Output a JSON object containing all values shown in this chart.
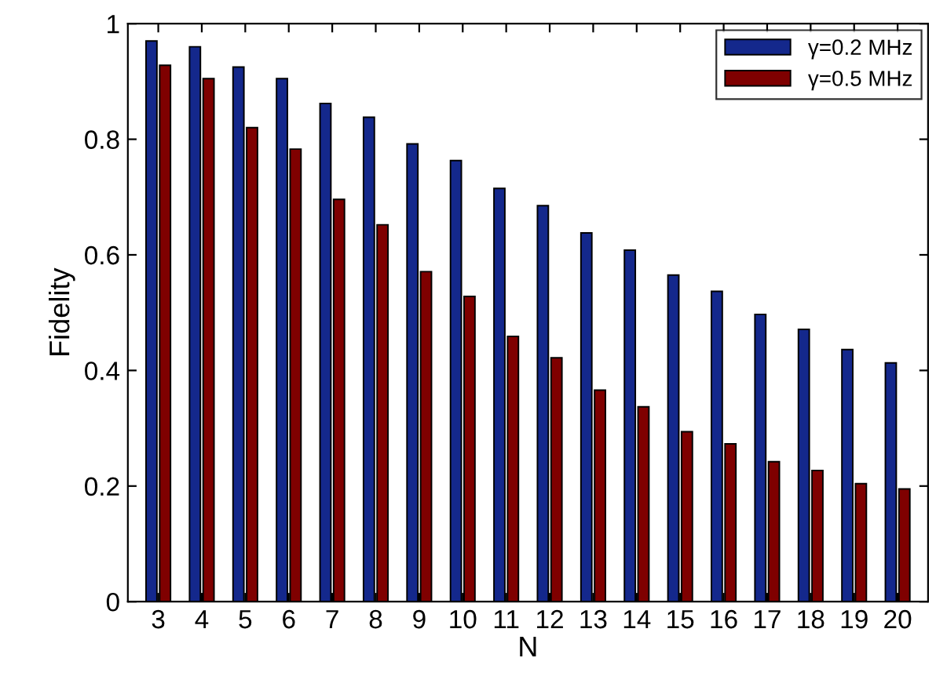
{
  "chart_data": {
    "type": "bar",
    "xlabel": "N",
    "ylabel": "Fidelity",
    "categories": [
      "3",
      "4",
      "5",
      "6",
      "7",
      "8",
      "9",
      "10",
      "11",
      "12",
      "13",
      "14",
      "15",
      "16",
      "17",
      "18",
      "19",
      "20"
    ],
    "series": [
      {
        "name": "γ=0.2 MHz",
        "color": "#14288c",
        "values": [
          0.97,
          0.96,
          0.925,
          0.905,
          0.862,
          0.838,
          0.792,
          0.763,
          0.715,
          0.685,
          0.638,
          0.608,
          0.565,
          0.537,
          0.497,
          0.471,
          0.436,
          0.413
        ]
      },
      {
        "name": "γ=0.5 MHz",
        "color": "#7f0000",
        "values": [
          0.928,
          0.905,
          0.82,
          0.783,
          0.696,
          0.652,
          0.571,
          0.528,
          0.459,
          0.422,
          0.366,
          0.337,
          0.294,
          0.273,
          0.242,
          0.227,
          0.204,
          0.195
        ]
      }
    ],
    "ylim": [
      0,
      1
    ],
    "yticks": [
      0,
      0.2,
      0.4,
      0.6,
      0.8,
      1
    ],
    "grid": false,
    "legend": "top right"
  }
}
